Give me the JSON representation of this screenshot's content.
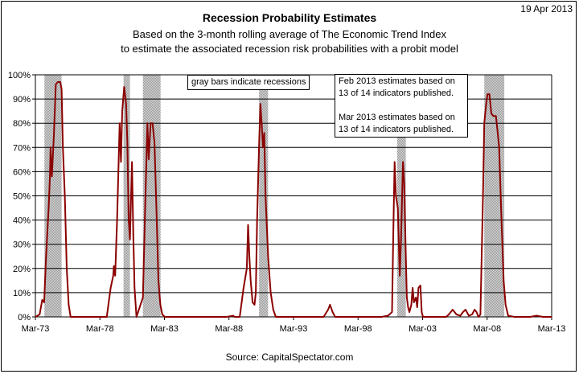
{
  "date_stamp": "19 Apr 2013",
  "source": "Source:  CapitalSpectator.com",
  "notes": {
    "recessions": "gray bars indicate recessions",
    "feb_estimate": "Feb 2013 estimates based on 13 of 14 indicators published.",
    "mar_estimate": "Mar 2013 estimates based on 13 of 14 indicators published."
  },
  "colors": {
    "line": "#8b0000",
    "recession_band": "#b8b8b8",
    "grid": "#000000"
  },
  "chart_data": {
    "type": "line",
    "title": "Recession Probability Estimates",
    "subtitle": [
      "Based on the 3-month rolling average of The Economic Trend Index",
      "to estimate the associated recession risk probabilities with a probit model"
    ],
    "xlabel": "",
    "ylabel": "",
    "x_range": [
      1973.17,
      2013.17
    ],
    "ylim": [
      0,
      100
    ],
    "y_ticks": [
      "0%",
      "10%",
      "20%",
      "30%",
      "40%",
      "50%",
      "60%",
      "70%",
      "80%",
      "90%",
      "100%"
    ],
    "x_ticks": [
      {
        "label": "Mar-73",
        "x": 1973.17
      },
      {
        "label": "Mar-78",
        "x": 1978.17
      },
      {
        "label": "Mar-83",
        "x": 1983.17
      },
      {
        "label": "Mar-88",
        "x": 1988.17
      },
      {
        "label": "Mar-93",
        "x": 1993.17
      },
      {
        "label": "Mar-98",
        "x": 1998.17
      },
      {
        "label": "Mar-03",
        "x": 2003.17
      },
      {
        "label": "Mar-08",
        "x": 2008.17
      },
      {
        "label": "Mar-13",
        "x": 2013.17
      }
    ],
    "grid": true,
    "legend": "none",
    "recessions": [
      [
        1973.87,
        1975.2
      ],
      [
        1980.0,
        1980.5
      ],
      [
        1981.5,
        1982.87
      ],
      [
        1990.5,
        1991.2
      ],
      [
        2001.2,
        2001.87
      ],
      [
        2007.95,
        2009.5
      ]
    ],
    "series": [
      {
        "points": [
          [
            1973.17,
            0
          ],
          [
            1973.5,
            1
          ],
          [
            1973.7,
            7
          ],
          [
            1973.85,
            6
          ],
          [
            1974.0,
            25
          ],
          [
            1974.2,
            45
          ],
          [
            1974.3,
            58
          ],
          [
            1974.35,
            70
          ],
          [
            1974.45,
            58
          ],
          [
            1974.6,
            75
          ],
          [
            1974.75,
            96
          ],
          [
            1974.9,
            97
          ],
          [
            1975.1,
            97
          ],
          [
            1975.2,
            94
          ],
          [
            1975.3,
            70
          ],
          [
            1975.45,
            50
          ],
          [
            1975.6,
            20
          ],
          [
            1975.75,
            5
          ],
          [
            1975.9,
            0
          ],
          [
            1977.0,
            0
          ],
          [
            1978.7,
            0
          ],
          [
            1978.85,
            6
          ],
          [
            1979.0,
            12
          ],
          [
            1979.2,
            17
          ],
          [
            1979.25,
            21
          ],
          [
            1979.35,
            17
          ],
          [
            1979.5,
            40
          ],
          [
            1979.7,
            80
          ],
          [
            1979.8,
            64
          ],
          [
            1979.9,
            85
          ],
          [
            1980.05,
            95
          ],
          [
            1980.2,
            88
          ],
          [
            1980.3,
            72
          ],
          [
            1980.4,
            40
          ],
          [
            1980.5,
            32
          ],
          [
            1980.65,
            64
          ],
          [
            1980.75,
            35
          ],
          [
            1980.85,
            12
          ],
          [
            1981.0,
            0
          ],
          [
            1981.5,
            8
          ],
          [
            1981.7,
            50
          ],
          [
            1981.85,
            80
          ],
          [
            1981.95,
            65
          ],
          [
            1982.1,
            80
          ],
          [
            1982.25,
            80
          ],
          [
            1982.4,
            72
          ],
          [
            1982.55,
            45
          ],
          [
            1982.7,
            15
          ],
          [
            1982.85,
            5
          ],
          [
            1983.0,
            1
          ],
          [
            1983.2,
            0
          ],
          [
            1988.0,
            0
          ],
          [
            1988.5,
            0.5
          ],
          [
            1988.6,
            0
          ],
          [
            1989.0,
            0
          ],
          [
            1989.3,
            12
          ],
          [
            1989.55,
            20
          ],
          [
            1989.65,
            38
          ],
          [
            1989.75,
            25
          ],
          [
            1989.85,
            15
          ],
          [
            1990.0,
            6
          ],
          [
            1990.15,
            5
          ],
          [
            1990.25,
            10
          ],
          [
            1990.35,
            40
          ],
          [
            1990.5,
            70
          ],
          [
            1990.6,
            88
          ],
          [
            1990.7,
            80
          ],
          [
            1990.8,
            70
          ],
          [
            1990.9,
            76
          ],
          [
            1991.0,
            50
          ],
          [
            1991.2,
            25
          ],
          [
            1991.4,
            10
          ],
          [
            1991.6,
            3
          ],
          [
            1991.8,
            0
          ],
          [
            1995.5,
            0
          ],
          [
            1995.85,
            3
          ],
          [
            1996.0,
            5
          ],
          [
            1996.2,
            2
          ],
          [
            1996.4,
            0
          ],
          [
            2000.0,
            0
          ],
          [
            2000.5,
            0.5
          ],
          [
            2000.8,
            2
          ],
          [
            2000.9,
            35
          ],
          [
            2001.0,
            64
          ],
          [
            2001.1,
            50
          ],
          [
            2001.25,
            45
          ],
          [
            2001.4,
            17
          ],
          [
            2001.5,
            32
          ],
          [
            2001.65,
            64
          ],
          [
            2001.75,
            55
          ],
          [
            2001.85,
            30
          ],
          [
            2001.95,
            8
          ],
          [
            2002.05,
            4
          ],
          [
            2002.15,
            2
          ],
          [
            2002.3,
            5
          ],
          [
            2002.4,
            12
          ],
          [
            2002.5,
            6
          ],
          [
            2002.65,
            8
          ],
          [
            2002.75,
            4
          ],
          [
            2002.85,
            12
          ],
          [
            2003.0,
            13
          ],
          [
            2003.1,
            2
          ],
          [
            2003.2,
            0
          ],
          [
            2005.0,
            0
          ],
          [
            2005.2,
            1
          ],
          [
            2005.5,
            3
          ],
          [
            2005.8,
            1
          ],
          [
            2006.1,
            0.5
          ],
          [
            2006.3,
            2
          ],
          [
            2006.5,
            3
          ],
          [
            2006.75,
            0.5
          ],
          [
            2007.0,
            1
          ],
          [
            2007.2,
            3
          ],
          [
            2007.35,
            2
          ],
          [
            2007.5,
            0
          ],
          [
            2007.65,
            1
          ],
          [
            2007.85,
            50
          ],
          [
            2007.95,
            80
          ],
          [
            2008.1,
            88
          ],
          [
            2008.2,
            92
          ],
          [
            2008.35,
            92
          ],
          [
            2008.5,
            84
          ],
          [
            2008.65,
            83
          ],
          [
            2008.85,
            83
          ],
          [
            2008.95,
            78
          ],
          [
            2009.1,
            70
          ],
          [
            2009.25,
            45
          ],
          [
            2009.45,
            15
          ],
          [
            2009.6,
            5
          ],
          [
            2009.8,
            0.5
          ],
          [
            2010.3,
            0
          ],
          [
            2011.5,
            0
          ],
          [
            2012.0,
            0.5
          ],
          [
            2012.5,
            0
          ],
          [
            2013.17,
            0
          ]
        ]
      }
    ]
  }
}
